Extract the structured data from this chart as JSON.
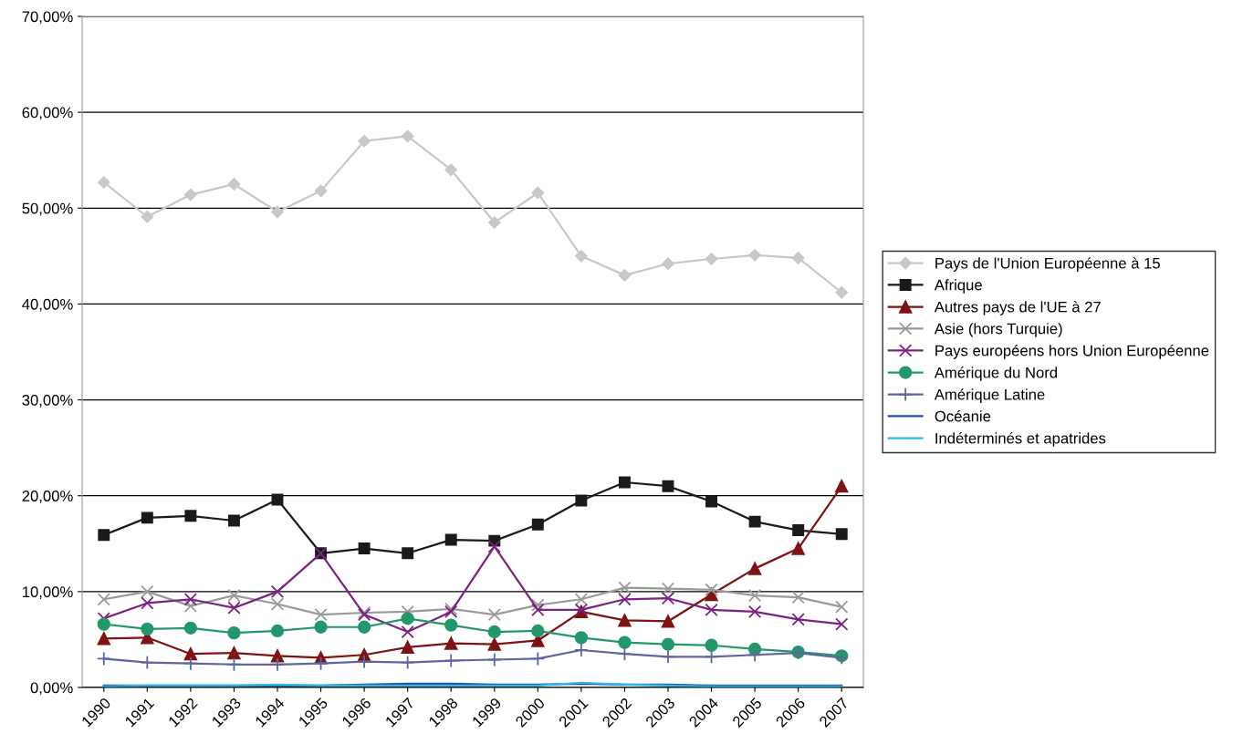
{
  "chart_data": {
    "type": "line",
    "categories": [
      "1990",
      "1991",
      "1992",
      "1993",
      "1994",
      "1995",
      "1996",
      "1997",
      "1998",
      "1999",
      "2000",
      "2001",
      "2002",
      "2003",
      "2004",
      "2005",
      "2006",
      "2007"
    ],
    "series": [
      {
        "name": "Pays de l'Union Européenne à 15",
        "color": "#c8c8c8",
        "marker": "diamond",
        "values": [
          52.7,
          49.1,
          51.4,
          52.5,
          49.6,
          51.8,
          57.0,
          57.5,
          54.0,
          48.5,
          51.6,
          45.0,
          43.0,
          44.2,
          44.7,
          45.1,
          44.8,
          41.2
        ]
      },
      {
        "name": "Afrique",
        "color": "#1a1a1a",
        "marker": "square",
        "values": [
          15.9,
          17.7,
          17.9,
          17.4,
          19.6,
          14.0,
          14.5,
          14.0,
          15.4,
          15.3,
          17.0,
          19.5,
          21.4,
          21.0,
          19.4,
          17.3,
          16.4,
          16.0
        ]
      },
      {
        "name": "Autres pays de l'UE à 27",
        "color": "#7f1212",
        "marker": "triangle",
        "values": [
          5.1,
          5.2,
          3.5,
          3.6,
          3.3,
          3.1,
          3.4,
          4.2,
          4.6,
          4.5,
          4.9,
          7.9,
          7.0,
          6.9,
          9.7,
          12.4,
          14.5,
          21.0
        ]
      },
      {
        "name": "Asie (hors Turquie)",
        "color": "#9a9a9a",
        "marker": "cross",
        "values": [
          9.2,
          10.0,
          8.5,
          9.6,
          8.7,
          7.6,
          7.8,
          7.9,
          8.2,
          7.6,
          8.6,
          9.2,
          10.4,
          10.3,
          10.2,
          9.6,
          9.4,
          8.4
        ]
      },
      {
        "name": "Pays européens hors Union Européenne",
        "color": "#7b2382",
        "marker": "cross",
        "values": [
          7.2,
          8.8,
          9.2,
          8.3,
          10.0,
          14.0,
          7.6,
          5.8,
          7.9,
          14.7,
          8.1,
          8.1,
          9.2,
          9.3,
          8.1,
          7.9,
          7.1,
          6.6
        ]
      },
      {
        "name": "Amérique du Nord",
        "color": "#22986a",
        "marker": "circle",
        "values": [
          6.6,
          6.1,
          6.2,
          5.7,
          5.9,
          6.3,
          6.3,
          7.2,
          6.5,
          5.8,
          5.9,
          5.2,
          4.7,
          4.5,
          4.4,
          4.0,
          3.7,
          3.3
        ]
      },
      {
        "name": "Amérique Latine",
        "color": "#5f65a0",
        "marker": "plus",
        "values": [
          3.0,
          2.6,
          2.5,
          2.4,
          2.4,
          2.5,
          2.7,
          2.6,
          2.8,
          2.9,
          3.0,
          3.9,
          3.5,
          3.2,
          3.2,
          3.4,
          3.6,
          3.1
        ]
      },
      {
        "name": "Océanie",
        "color": "#1f4fa8",
        "marker": "none",
        "values": [
          0.2,
          0.2,
          0.2,
          0.2,
          0.2,
          0.2,
          0.3,
          0.4,
          0.4,
          0.3,
          0.3,
          0.4,
          0.3,
          0.3,
          0.2,
          0.2,
          0.2,
          0.2
        ]
      },
      {
        "name": "Indéterminés et apatrides",
        "color": "#29b9ec",
        "marker": "none",
        "values": [
          0.1,
          0.2,
          0.2,
          0.2,
          0.3,
          0.2,
          0.2,
          0.2,
          0.2,
          0.2,
          0.2,
          0.5,
          0.3,
          0.2,
          0.1,
          0.1,
          0.1,
          0.1
        ]
      }
    ],
    "ylim": [
      0,
      70
    ],
    "yticks": [
      {
        "value": 0,
        "label": "0,00%"
      },
      {
        "value": 10,
        "label": "10,00%"
      },
      {
        "value": 20,
        "label": "20,00%"
      },
      {
        "value": 30,
        "label": "30,00%"
      },
      {
        "value": 40,
        "label": "40,00%"
      },
      {
        "value": 50,
        "label": "50,00%"
      },
      {
        "value": 60,
        "label": "60,00%"
      },
      {
        "value": 70,
        "label": "70,00%"
      }
    ],
    "grid": "y",
    "legend": "right"
  }
}
